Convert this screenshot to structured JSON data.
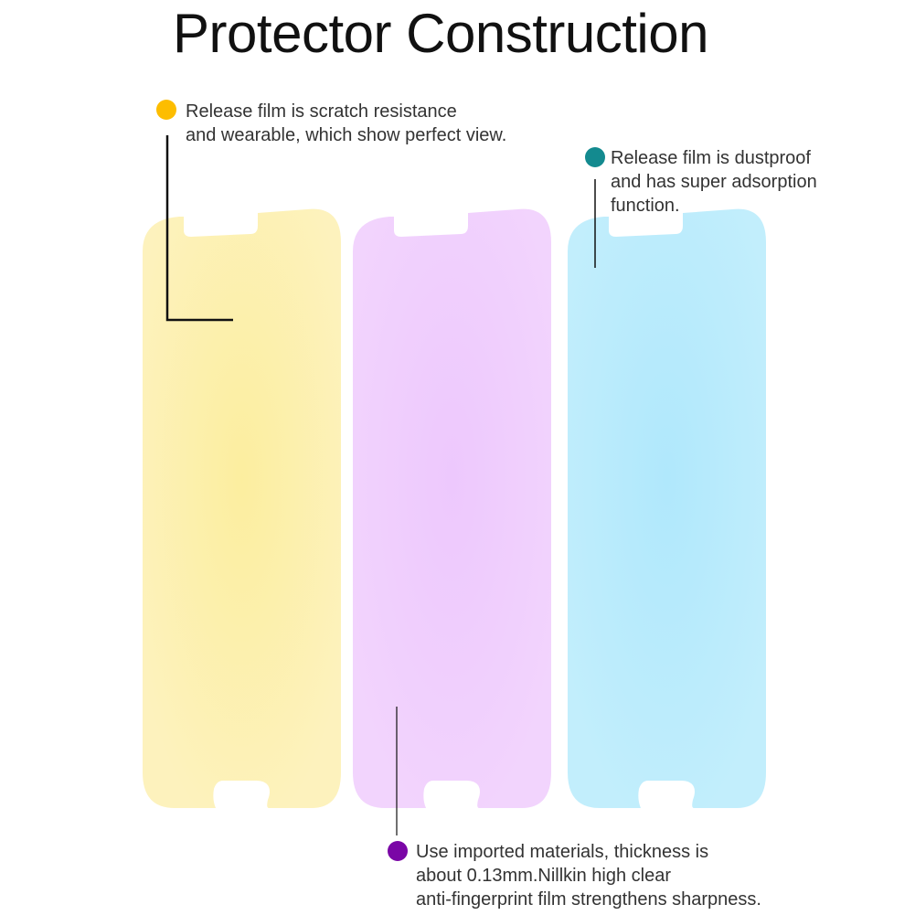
{
  "title": "Protector Construction",
  "colors": {
    "yellow_layer": "#fdf2bd",
    "purple_layer": "#efcdfd",
    "blue_layer": "#b8ebfc",
    "yellow_dot": "#fdbd00",
    "teal_dot": "#138a8f",
    "purple_dot": "#7a06a6"
  },
  "layers": [
    {
      "name": "release-film-top",
      "color": "#fdf2bd",
      "center": "#fcee9f"
    },
    {
      "name": "protector-film",
      "color": "#f2d4fd",
      "center": "#edc8fd"
    },
    {
      "name": "release-film-bottom",
      "color": "#c2eefc",
      "center": "#b0e8fc"
    }
  ],
  "callouts": {
    "yellow": {
      "lines": [
        "Release film is scratch resistance",
        "and wearable, which show perfect view."
      ]
    },
    "teal": {
      "lines": [
        "Release film is dustproof",
        "and has super adsorption",
        "function."
      ]
    },
    "purple": {
      "lines": [
        "Use imported materials, thickness is",
        "about 0.13mm.Nillkin high clear",
        "anti-fingerprint film strengthens sharpness."
      ]
    }
  }
}
